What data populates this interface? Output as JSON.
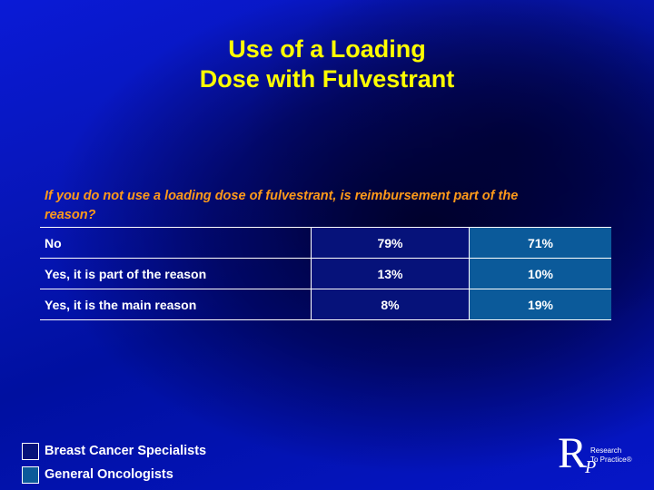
{
  "title": {
    "line1": "Use of a Loading",
    "line2": "Dose with Fulvestrant"
  },
  "question": "If you do not use a loading dose of fulvestrant, is reimbursement part of the reason?",
  "table": {
    "rows": [
      {
        "label": "No",
        "breast_cancer_specialists": "79%",
        "general_oncologists": "71%"
      },
      {
        "label": "Yes, it is part of the reason",
        "breast_cancer_specialists": "13%",
        "general_oncologists": "10%"
      },
      {
        "label": "Yes, it is the main reason",
        "breast_cancer_specialists": "8%",
        "general_oncologists": "19%"
      }
    ]
  },
  "legend": [
    {
      "label": "Breast Cancer Specialists",
      "color": "#06127a"
    },
    {
      "label": "General Oncologists",
      "color": "#0b5a9a"
    }
  ],
  "logo": {
    "letter_r": "R",
    "letter_p": "P",
    "line1": "Research",
    "line2": "To Practice®"
  },
  "colors": {
    "title": "#ffff00",
    "question": "#ff9a1a",
    "background": "#0716b8"
  }
}
